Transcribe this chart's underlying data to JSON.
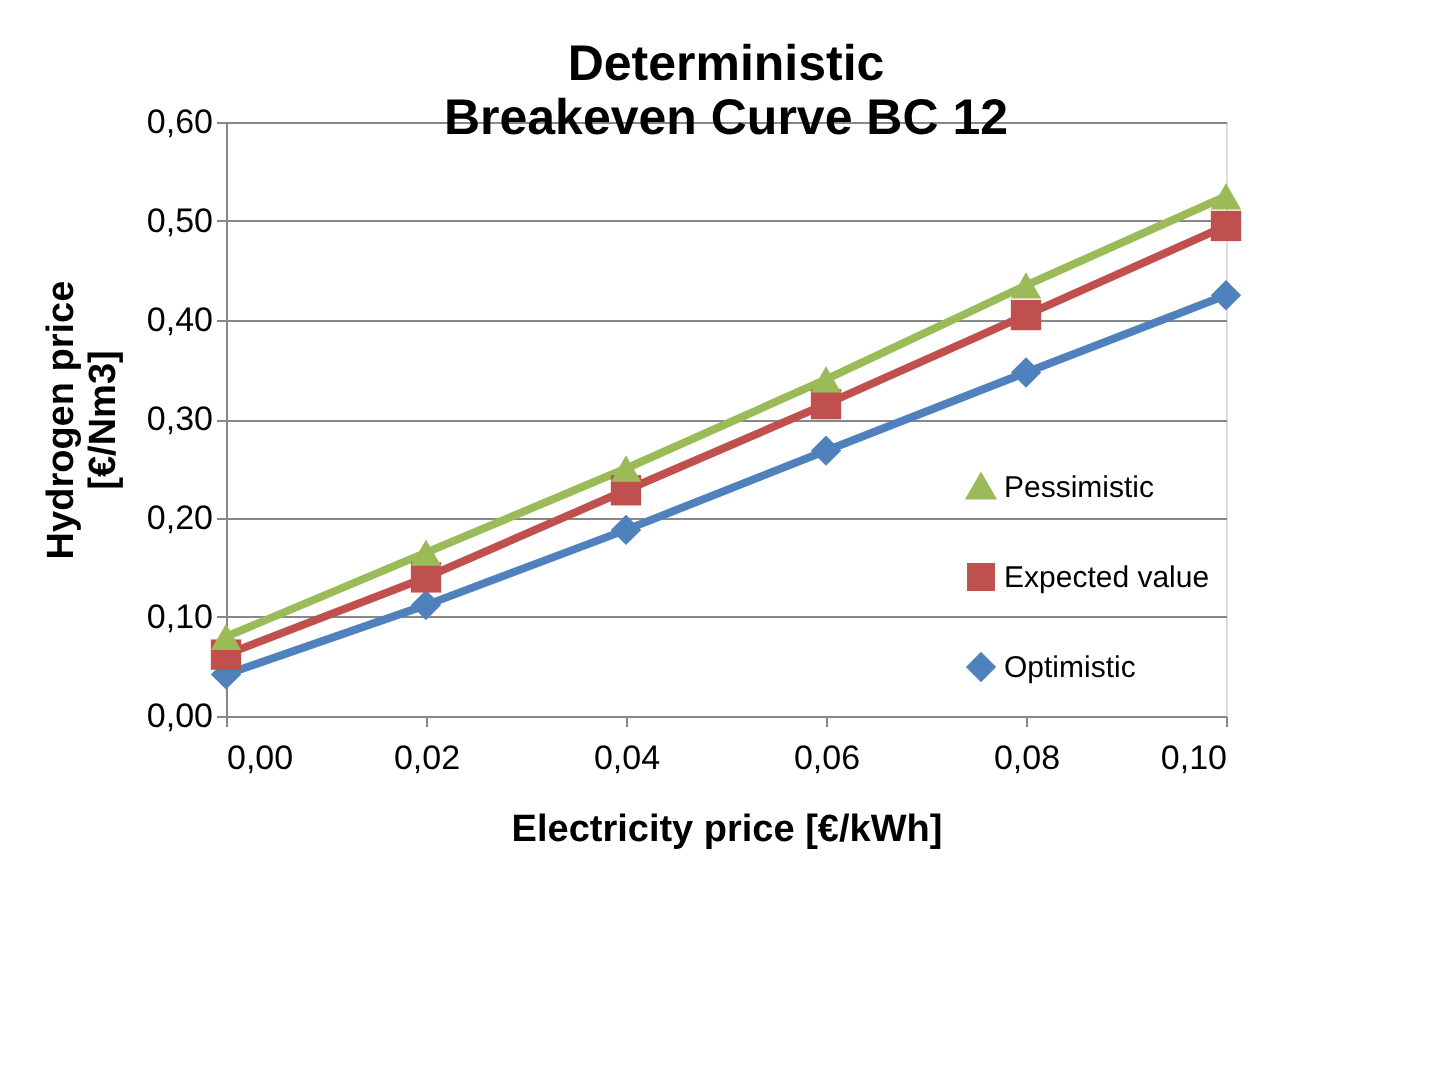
{
  "chart_data": {
    "type": "line",
    "title": [
      "Deterministic",
      "Breakeven Curve BC 12"
    ],
    "xlabel": "Electricity price [€/kWh]",
    "ylabel": [
      "Hydrogen price",
      "[€/Nm3]"
    ],
    "x": [
      0.0,
      0.02,
      0.04,
      0.06,
      0.08,
      0.1
    ],
    "xlim": [
      0.0,
      0.1
    ],
    "xticks": [
      {
        "value": 0.0,
        "label": "0,00"
      },
      {
        "value": 0.02,
        "label": "0,02"
      },
      {
        "value": 0.04,
        "label": "0,04"
      },
      {
        "value": 0.06,
        "label": "0,06"
      },
      {
        "value": 0.08,
        "label": "0,08"
      },
      {
        "value": 0.1,
        "label": "0,10"
      }
    ],
    "ylim": [
      0.0,
      0.6
    ],
    "yticks": [
      {
        "value": 0.0,
        "label": "0,00"
      },
      {
        "value": 0.1,
        "label": "0,10"
      },
      {
        "value": 0.2,
        "label": "0,20"
      },
      {
        "value": 0.3,
        "label": "0,30"
      },
      {
        "value": 0.4,
        "label": "0,40"
      },
      {
        "value": 0.5,
        "label": "0,50"
      },
      {
        "value": 0.6,
        "label": "0,60"
      }
    ],
    "grid": "y",
    "legend": "right",
    "series": [
      {
        "name": "Pessimistic",
        "color": "#9bbb59",
        "marker": "triangle",
        "values": [
          0.08,
          0.165,
          0.25,
          0.34,
          0.435,
          0.525
        ]
      },
      {
        "name": "Expected value",
        "color": "#c0504d",
        "marker": "square",
        "values": [
          0.062,
          0.14,
          0.228,
          0.315,
          0.405,
          0.495
        ]
      },
      {
        "name": "Optimistic",
        "color": "#4f81bd",
        "marker": "diamond",
        "values": [
          0.042,
          0.112,
          0.188,
          0.268,
          0.347,
          0.425
        ]
      }
    ]
  }
}
